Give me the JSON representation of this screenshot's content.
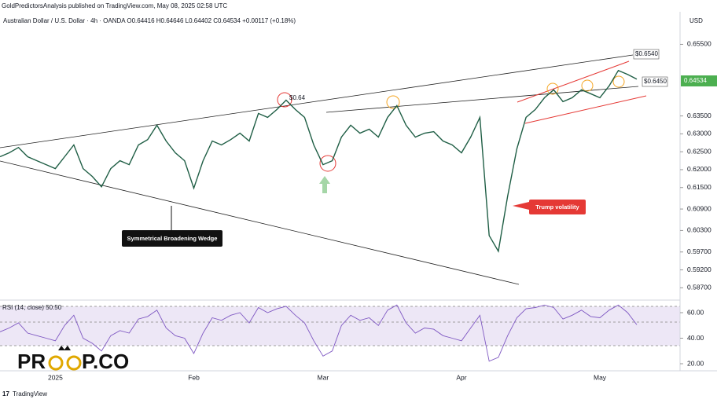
{
  "header": "GoldPredictorsAnalysis published on TradingView.com, May 08, 2025 02:58 UTC",
  "footer": "TradingView",
  "logo": {
    "left": "PR",
    "right": "P.CO"
  },
  "chart_data": {
    "type": "line",
    "title": "Australian Dollar / U.S. Dollar · 4h · OANDA  O0.64416 H0.64646 L0.64402 C0.64534 +0.00117 (+0.18%)",
    "currency": "USD",
    "last_price_label": "0.64534",
    "rsi_title": "RSI (14, close)  50.50",
    "annotations": [
      "$0.6540",
      "$0.6450",
      "$0.64",
      "Symmetrical Broadening Wedge",
      "Trump volatility"
    ],
    "categories": [
      null,
      null,
      null,
      null,
      null,
      null,
      "2025",
      null,
      null,
      null,
      null,
      null,
      null,
      null,
      null,
      null,
      null,
      null,
      null,
      null,
      null,
      "Feb",
      null,
      null,
      null,
      null,
      null,
      null,
      null,
      null,
      null,
      null,
      null,
      null,
      null,
      "Mar",
      null,
      null,
      null,
      null,
      null,
      null,
      null,
      null,
      null,
      null,
      null,
      null,
      null,
      null,
      "Apr",
      null,
      null,
      null,
      null,
      null,
      null,
      null,
      null,
      null,
      null,
      null,
      null,
      null,
      null,
      "May",
      null,
      null,
      null,
      null
    ],
    "series": [
      {
        "name": "AUD/USD",
        "color": "#1f5e45",
        "values": [
          0.6236,
          0.6247,
          0.6262,
          0.6236,
          0.6225,
          0.6214,
          0.6203,
          0.6236,
          0.6269,
          0.6203,
          0.6181,
          0.6152,
          0.6203,
          0.6225,
          0.6214,
          0.6269,
          0.6284,
          0.6324,
          0.628,
          0.6247,
          0.6225,
          0.6148,
          0.6225,
          0.628,
          0.6269,
          0.6284,
          0.6302,
          0.628,
          0.6357,
          0.6346,
          0.6368,
          0.6394,
          0.6368,
          0.6346,
          0.6269,
          0.6214,
          0.6225,
          0.6291,
          0.6324,
          0.6302,
          0.6313,
          0.6291,
          0.6346,
          0.6379,
          0.6324,
          0.6291,
          0.6302,
          0.6306,
          0.628,
          0.6269,
          0.6247,
          0.6291,
          0.6346,
          0.6016,
          0.5972,
          0.6126,
          0.6258,
          0.6346,
          0.6368,
          0.6401,
          0.6423,
          0.639,
          0.6401,
          0.6423,
          0.6412,
          0.6401,
          0.6434,
          0.6477,
          0.6466,
          0.6453
        ]
      },
      {
        "name": "RSI",
        "color": "#7e57c2",
        "axis": "y2",
        "values": [
          45,
          48,
          52,
          44,
          42,
          40,
          38,
          50,
          58,
          40,
          36,
          30,
          42,
          46,
          44,
          55,
          57,
          62,
          48,
          42,
          40,
          28,
          44,
          56,
          54,
          58,
          60,
          52,
          64,
          60,
          63,
          65,
          58,
          52,
          38,
          26,
          30,
          50,
          58,
          54,
          56,
          50,
          62,
          66,
          52,
          44,
          48,
          47,
          42,
          40,
          38,
          48,
          58,
          22,
          25,
          42,
          56,
          63,
          64,
          66,
          64,
          55,
          58,
          62,
          57,
          56,
          62,
          66,
          60,
          50.5
        ]
      }
    ],
    "ylim": [
      0.584,
      0.663
    ],
    "yticks": [
      {
        "value": 0.655,
        "label": "0.65500"
      },
      {
        "value": 0.635,
        "label": "0.63500"
      },
      {
        "value": 0.63,
        "label": "0.63000"
      },
      {
        "value": 0.625,
        "label": "0.62500"
      },
      {
        "value": 0.62,
        "label": "0.62000"
      },
      {
        "value": 0.615,
        "label": "0.61500"
      },
      {
        "value": 0.609,
        "label": "0.60900"
      },
      {
        "value": 0.603,
        "label": "0.60300"
      },
      {
        "value": 0.597,
        "label": "0.59700"
      },
      {
        "value": 0.592,
        "label": "0.59200"
      },
      {
        "value": 0.587,
        "label": "0.58700"
      }
    ],
    "y2lim": [
      16,
      68
    ],
    "y2ticks": [
      {
        "value": 60,
        "label": "60.00"
      },
      {
        "value": 40,
        "label": "40.00"
      },
      {
        "value": 20,
        "label": "20.00"
      }
    ]
  }
}
